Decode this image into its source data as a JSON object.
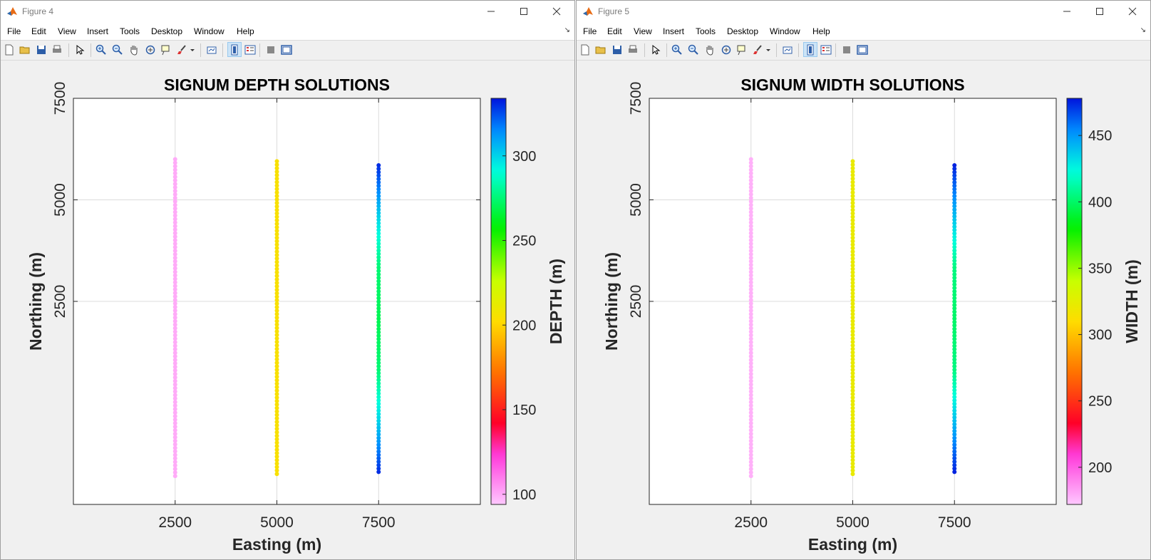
{
  "figures": [
    {
      "window_title": "Figure 4",
      "menu": [
        "File",
        "Edit",
        "View",
        "Insert",
        "Tools",
        "Desktop",
        "Window",
        "Help"
      ],
      "colormap": "hsv",
      "chart_data": {
        "type": "scatter",
        "title": "SIGNUM DEPTH SOLUTIONS",
        "xlabel": "Easting (m)",
        "ylabel": "Northing (m)",
        "xlim": [
          0,
          10000
        ],
        "ylim": [
          -2500,
          7500
        ],
        "xticks": [
          2500,
          5000,
          7500
        ],
        "xtick_labels": [
          "2500",
          "5000",
          "7500"
        ],
        "yticks": [
          2500,
          5000,
          7500
        ],
        "ytick_labels": [
          "2500",
          "5000",
          "7500"
        ],
        "grid": true,
        "colorbar": {
          "label": "DEPTH (m)",
          "lim": [
            94,
            334
          ],
          "ticks": [
            100,
            150,
            200,
            250,
            300
          ],
          "tick_labels": [
            "100",
            "150",
            "200",
            "250",
            "300"
          ]
        },
        "series": [
          {
            "x": 2500,
            "y_start": -1800,
            "y_end": 6000,
            "color_values": [
              100,
              100,
              100
            ]
          },
          {
            "x": 5000,
            "y_start": -1750,
            "y_end": 5950,
            "color_values": [
              205,
              205,
              205
            ]
          },
          {
            "x": 7500,
            "y_start": -1700,
            "y_end": 5850,
            "color_values": [
              330,
              300,
              275,
              270,
              275,
              300,
              330
            ]
          }
        ]
      }
    },
    {
      "window_title": "Figure 5",
      "menu": [
        "File",
        "Edit",
        "View",
        "Insert",
        "Tools",
        "Desktop",
        "Window",
        "Help"
      ],
      "colormap": "hsv",
      "chart_data": {
        "type": "scatter",
        "title": "SIGNUM WIDTH SOLUTIONS",
        "xlabel": "Easting (m)",
        "ylabel": "Northing (m)",
        "xlim": [
          0,
          10000
        ],
        "ylim": [
          -2500,
          7500
        ],
        "xticks": [
          2500,
          5000,
          7500
        ],
        "xtick_labels": [
          "2500",
          "5000",
          "7500"
        ],
        "yticks": [
          2500,
          5000,
          7500
        ],
        "ytick_labels": [
          "2500",
          "5000",
          "7500"
        ],
        "grid": true,
        "colorbar": {
          "label": "WIDTH (m)",
          "lim": [
            172,
            478
          ],
          "ticks": [
            200,
            250,
            300,
            350,
            400,
            450
          ],
          "tick_labels": [
            "200",
            "250",
            "300",
            "350",
            "400",
            "450"
          ]
        },
        "series": [
          {
            "x": 2500,
            "y_start": -1800,
            "y_end": 6000,
            "color_values": [
              178,
              178,
              178
            ]
          },
          {
            "x": 5000,
            "y_start": -1750,
            "y_end": 5950,
            "color_values": [
              322,
              322,
              322
            ]
          },
          {
            "x": 7500,
            "y_start": -1700,
            "y_end": 5850,
            "color_values": [
              475,
              440,
              405,
              400,
              405,
              440,
              475
            ]
          }
        ]
      }
    }
  ]
}
